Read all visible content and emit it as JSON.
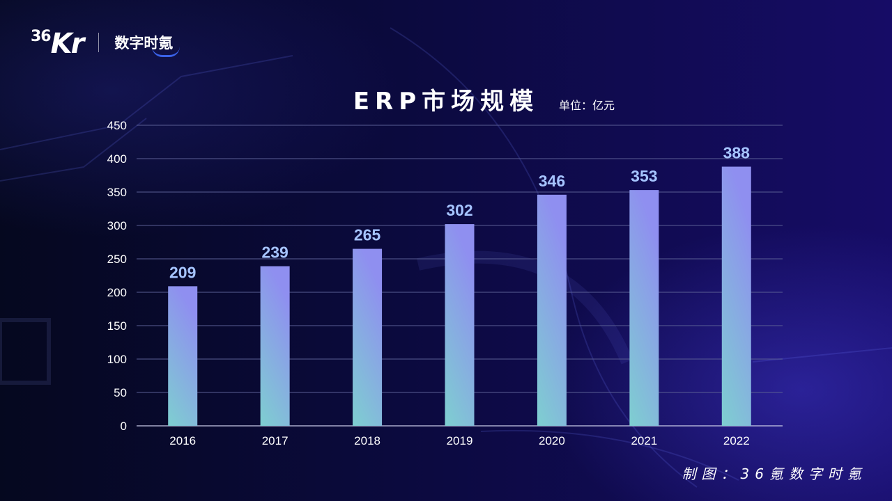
{
  "logo": {
    "primary_num": "36",
    "primary_kr": "Kr",
    "brand": "数字时氪"
  },
  "title": "ERP市场规模",
  "unit": "单位：亿元",
  "credit": "制图：36氪数字时氪",
  "colors": {
    "bar_bottom": "#7ecfd0",
    "bar_top": "#8f8ff0",
    "data_label": "#a6c4ff",
    "axis_text": "#ffffff",
    "grid": "#5a5e94"
  },
  "chart_data": {
    "type": "bar",
    "categories": [
      "2016",
      "2017",
      "2018",
      "2019",
      "2020",
      "2021",
      "2022"
    ],
    "values": [
      209,
      239,
      265,
      302,
      346,
      353,
      388
    ],
    "data_labels": [
      "209",
      "239",
      "265",
      "302",
      "346",
      "353",
      "388"
    ],
    "ylim": [
      0,
      450
    ],
    "yticks": [
      0,
      50,
      100,
      150,
      200,
      250,
      300,
      350,
      400,
      450
    ],
    "ytick_labels": [
      "0",
      "50",
      "100",
      "150",
      "200",
      "250",
      "300",
      "350",
      "400",
      "450"
    ],
    "grid": true
  }
}
